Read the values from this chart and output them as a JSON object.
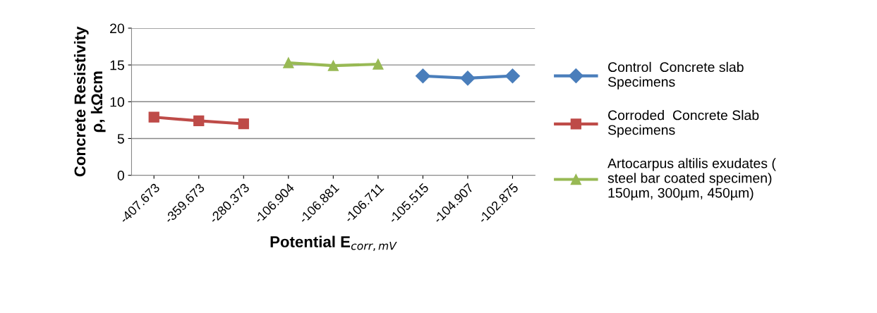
{
  "chart_data": {
    "type": "line",
    "categories": [
      "-407.673",
      "-359.673",
      "-280.373",
      "-106.904",
      "-106.881",
      "-106.711",
      "-105.515",
      "-104.907",
      "-102.875"
    ],
    "series": [
      {
        "name": "Control  Concrete slab\nSpecimens",
        "color": "#4a7ebb",
        "marker": "diamond",
        "values": [
          null,
          null,
          null,
          null,
          null,
          null,
          13.5,
          13.2,
          13.5
        ]
      },
      {
        "name": "Corroded  Concrete Slab\nSpecimens",
        "color": "#be4b48",
        "marker": "square",
        "values": [
          7.9,
          7.4,
          7.0,
          null,
          null,
          null,
          null,
          null,
          null
        ]
      },
      {
        "name": "Artocarpus altilis exudates (\nsteel bar coated specimen)\n150µm, 300µm, 450µm)",
        "color": "#98b954",
        "marker": "triangle",
        "values": [
          null,
          null,
          null,
          15.3,
          14.9,
          15.1,
          null,
          null,
          null
        ]
      }
    ],
    "xlabel": "Potential E$_{corr,mV}$",
    "ylabel": "Concrete Resistivity\nρ, kΩcm",
    "ylim": [
      0,
      20
    ],
    "yticks": [
      0,
      5,
      10,
      15,
      20
    ],
    "grid": "y",
    "legend": "right",
    "line_style": "solid"
  }
}
